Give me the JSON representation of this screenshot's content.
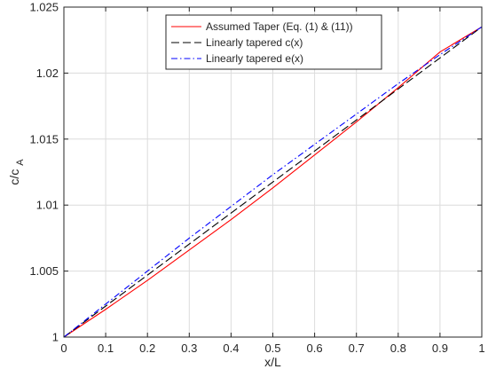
{
  "chart_data": {
    "type": "line",
    "xlabel": "x/L",
    "ylabel_main": "c/c",
    "ylabel_sub": "A",
    "xlim": [
      0,
      1
    ],
    "ylim": [
      1.0,
      1.025
    ],
    "xticks": [
      0,
      0.1,
      0.2,
      0.3,
      0.4,
      0.5,
      0.6,
      0.7,
      0.8,
      0.9,
      1
    ],
    "xtick_labels": [
      "0",
      "0.1",
      "0.2",
      "0.3",
      "0.4",
      "0.5",
      "0.6",
      "0.7",
      "0.8",
      "0.9",
      "1"
    ],
    "yticks": [
      1.0,
      1.005,
      1.01,
      1.015,
      1.02,
      1.025
    ],
    "ytick_labels": [
      "1",
      "1.005",
      "1.01",
      "1.015",
      "1.02",
      "1.025"
    ],
    "grid": true,
    "legend_position": "top-center",
    "series": [
      {
        "name": "Assumed Taper (Eq. (1) & (11))",
        "color": "#ff0000",
        "dash": "solid",
        "x": [
          0,
          0.1,
          0.2,
          0.3,
          0.4,
          0.5,
          0.6,
          0.7,
          0.8,
          0.9,
          1
        ],
        "y": [
          1.0,
          1.0021,
          1.0043,
          1.0066,
          1.0089,
          1.0113,
          1.0138,
          1.0163,
          1.0189,
          1.0216,
          1.0235
        ]
      },
      {
        "name": "Linearly tapered c(x)",
        "color": "#000000",
        "dash": "dashed",
        "x": [
          0,
          1
        ],
        "y": [
          1.0,
          1.0235
        ]
      },
      {
        "name": "Linearly tapered e(x)",
        "color": "#0000ff",
        "dash": "dashdot",
        "x": [
          0,
          0.1,
          0.2,
          0.3,
          0.4,
          0.5,
          0.6,
          0.7,
          0.8,
          0.9,
          1
        ],
        "y": [
          1.0,
          1.0025,
          1.005,
          1.0075,
          1.0099,
          1.0123,
          1.0146,
          1.0169,
          1.0192,
          1.0214,
          1.0235
        ]
      }
    ]
  }
}
